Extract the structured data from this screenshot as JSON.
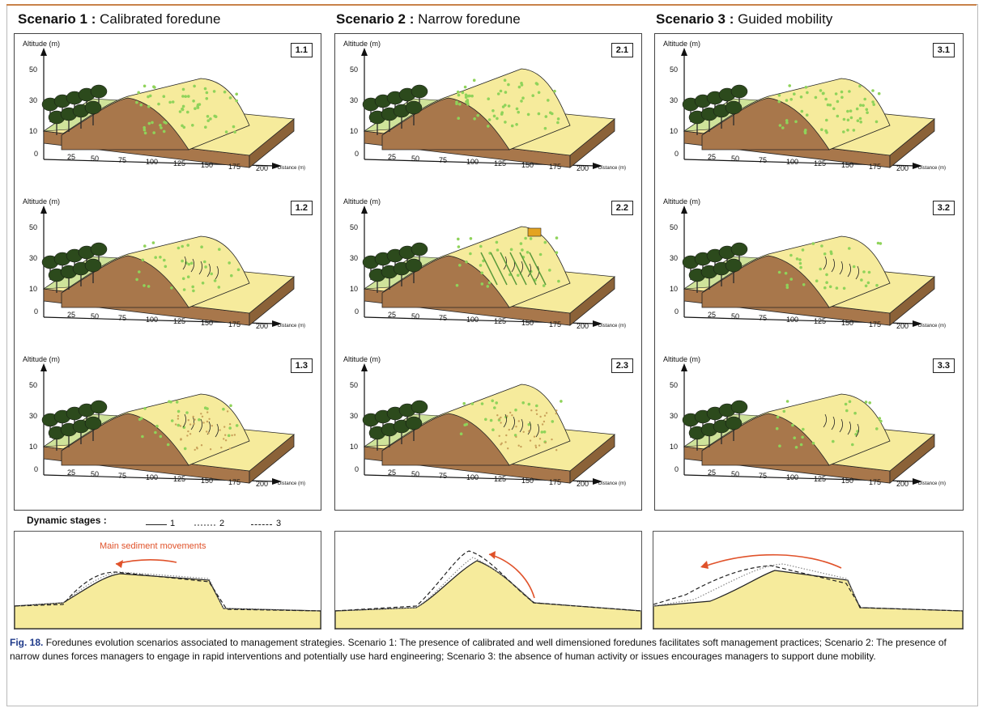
{
  "scenarios": [
    {
      "title_bold": "Scenario 1 :",
      "title_rest": " Calibrated foredune",
      "panels": [
        "1.1",
        "1.2",
        "1.3"
      ]
    },
    {
      "title_bold": "Scenario 2 :",
      "title_rest": " Narrow foredune",
      "panels": [
        "2.1",
        "2.2",
        "2.3"
      ]
    },
    {
      "title_bold": "Scenario 3 :",
      "title_rest": " Guided mobility",
      "panels": [
        "3.1",
        "3.2",
        "3.3"
      ]
    }
  ],
  "axis": {
    "ylabel": "Altitude (m)",
    "yticks": [
      "50",
      "30",
      "10",
      "0"
    ],
    "xticks": [
      "25",
      "50",
      "75",
      "100",
      "125",
      "150",
      "175",
      "200"
    ],
    "xlabel": "Distance (m)"
  },
  "legend": {
    "title": "Dynamic stages :",
    "items": [
      {
        "label": "1",
        "style": "solid"
      },
      {
        "label": "2",
        "style": "dotted-grey"
      },
      {
        "label": "3",
        "style": "dashed"
      }
    ]
  },
  "profile_annotation": "Main sediment movements",
  "caption": {
    "label": "Fig. 18.",
    "text": "Foredunes evolution scenarios associated to management strategies. Scenario 1: The presence of calibrated and well dimensioned foredunes facilitates soft management practices; Scenario 2: The presence of narrow dunes forces managers to engage in rapid interventions and potentially use hard engineering; Scenario 3: the absence of human activity or issues encourages managers to support dune mobility."
  },
  "colors": {
    "sand": "#f6eb9c",
    "soil": "#a8774b",
    "forest": "#2c4a1c",
    "grass": "#cfe39a",
    "vegetation": "#8fd35a",
    "arrow": "#e0522a"
  }
}
